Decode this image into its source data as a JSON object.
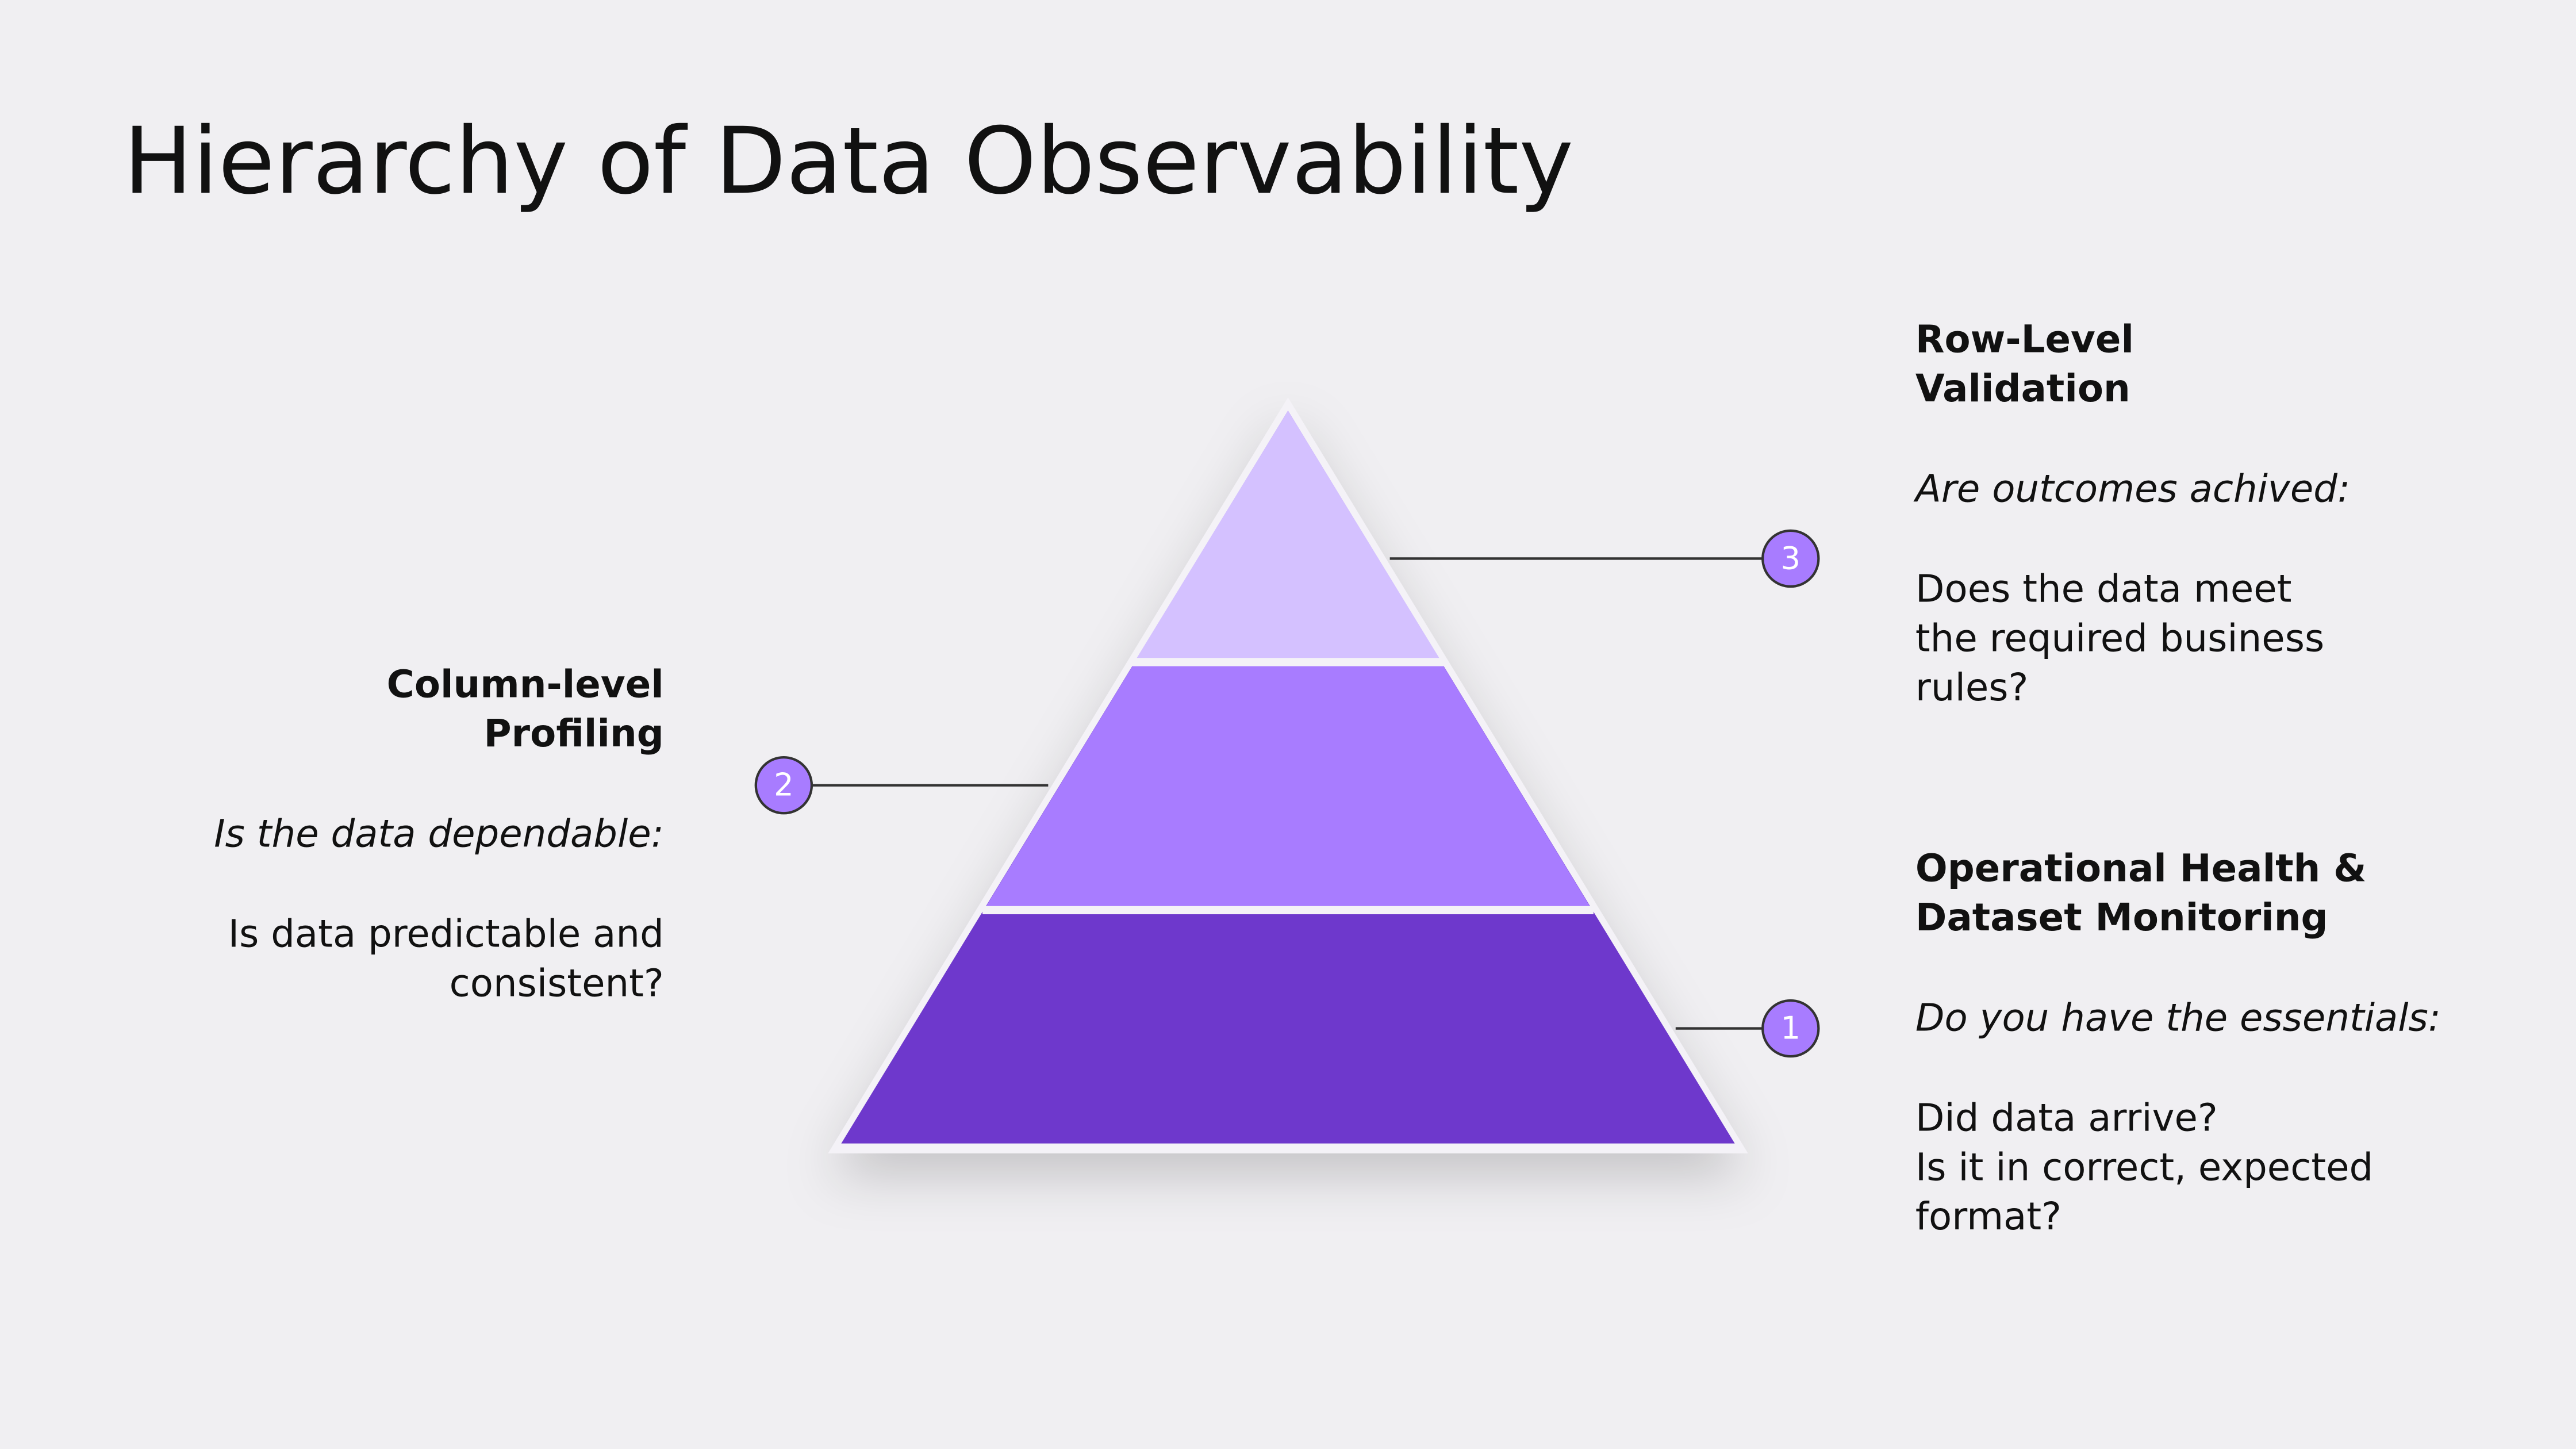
{
  "title": "Hierarchy of Data Observability",
  "levels": [
    {
      "number": "1",
      "heading": [
        "Operational Health &",
        "Dataset Monitoring"
      ],
      "question": "Do you have the essentials:",
      "description": [
        "Did data arrive?",
        "Is it in correct, expected",
        "format?"
      ]
    },
    {
      "number": "2",
      "heading": [
        "Column-level",
        "Profiling"
      ],
      "question": "Is the data dependable:",
      "description": [
        "Is data predictable and",
        "consistent?"
      ]
    },
    {
      "number": "3",
      "heading": [
        "Row-Level",
        "Validation"
      ],
      "question": "Are outcomes achived:",
      "description": [
        "Does the data meet",
        "the required business",
        "rules?"
      ]
    }
  ]
}
